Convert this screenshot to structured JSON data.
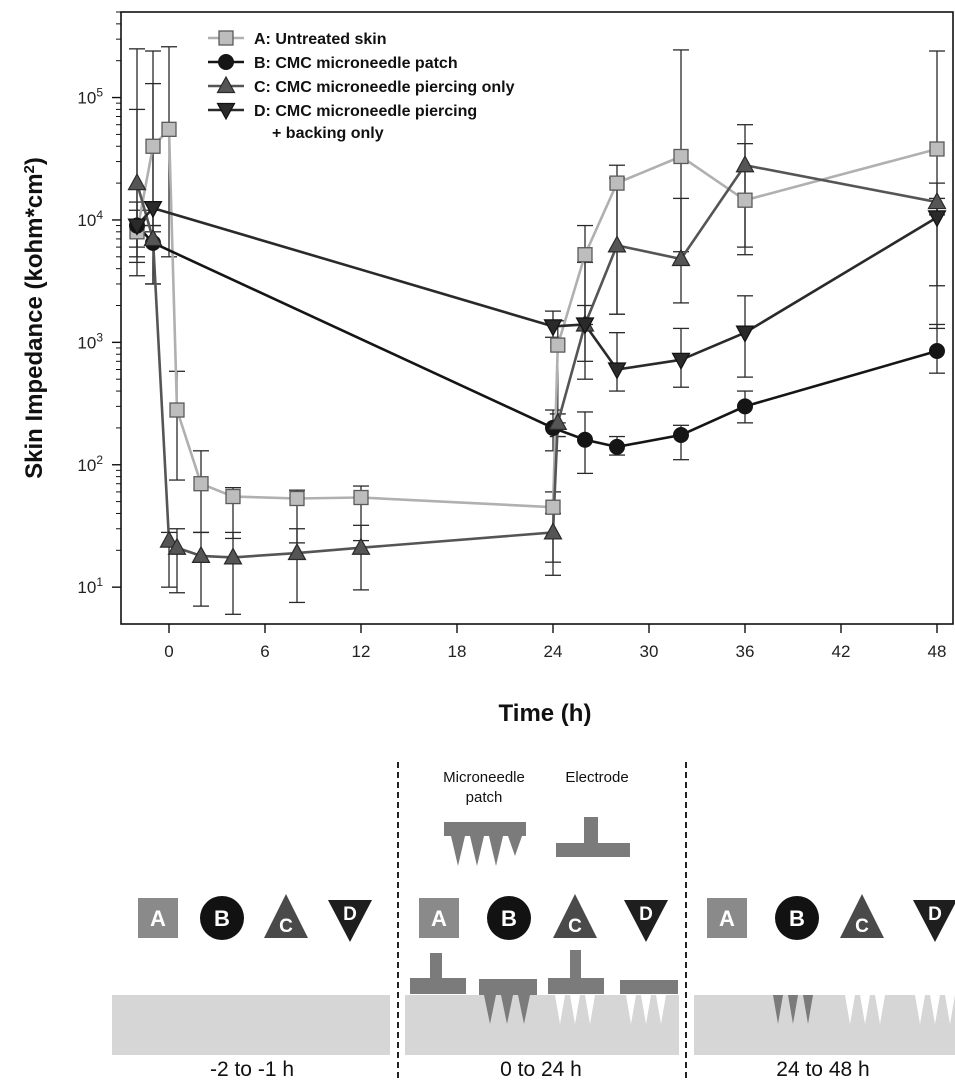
{
  "chart_data": {
    "type": "line",
    "ylabel": "Skin Impedance (kohm*cm²)",
    "xlabel": "Time (h)",
    "y_scale": "log",
    "ylim": [
      5,
      500000
    ],
    "xlim": [
      -3,
      49
    ],
    "x_ticks": [
      "0",
      "6",
      "12",
      "18",
      "24",
      "30",
      "36",
      "42",
      "48"
    ],
    "x_tick_values": [
      0,
      6,
      12,
      18,
      24,
      30,
      36,
      42,
      48
    ],
    "y_ticks": [
      {
        "base": "10",
        "exp": "1",
        "value": 10
      },
      {
        "base": "10",
        "exp": "2",
        "value": 100
      },
      {
        "base": "10",
        "exp": "3",
        "value": 1000
      },
      {
        "base": "10",
        "exp": "4",
        "value": 10000
      },
      {
        "base": "10",
        "exp": "5",
        "value": 100000
      }
    ],
    "grid": false,
    "legend_position": "top-left",
    "series": [
      {
        "name": "A: Untreated skin",
        "marker": "square",
        "color": "#bdbdbd",
        "edge": "#5a5a5a",
        "x": [
          -2,
          -1,
          0,
          0.5,
          2,
          4,
          8,
          12,
          24,
          24.3,
          26,
          28,
          32,
          36,
          48
        ],
        "y": [
          8000,
          40000,
          55000,
          280,
          70,
          55,
          53,
          54,
          45,
          950,
          5200,
          20000,
          33000,
          14500,
          38000
        ],
        "err_lo": [
          3500,
          9000,
          5000,
          75,
          28,
          25,
          23,
          24,
          16,
          220,
          1400,
          1700,
          5500,
          6000,
          11000
        ],
        "err_hi": [
          250000,
          240000,
          260000,
          580,
          130,
          65,
          62,
          67,
          60,
          1500,
          9000,
          28000,
          245000,
          42000,
          240000
        ]
      },
      {
        "name": "B: CMC microneedle patch",
        "marker": "circle",
        "color": "#151515",
        "edge": "#151515",
        "x": [
          -2,
          -1,
          24,
          26,
          28,
          32,
          36,
          48
        ],
        "y": [
          9000,
          6500,
          200,
          160,
          140,
          175,
          300,
          850
        ],
        "err_lo": [
          6000,
          3000,
          130,
          85,
          120,
          110,
          220,
          560
        ],
        "err_hi": [
          12000,
          9000,
          280,
          270,
          170,
          210,
          400,
          1400
        ]
      },
      {
        "name": "C: CMC microneedle piercing only",
        "marker": "triangle-up",
        "color": "#555555",
        "edge": "#2a2a2a",
        "x": [
          -2,
          -1,
          0,
          0.5,
          2,
          4,
          8,
          12,
          24,
          24.3,
          26,
          28,
          32,
          36,
          48
        ],
        "y": [
          20000,
          7000,
          24,
          21,
          18,
          17.5,
          19,
          21,
          28,
          220,
          1400,
          6200,
          4800,
          28000,
          14000
        ],
        "err_lo": [
          4500,
          3000,
          10,
          9,
          7,
          6,
          7.5,
          9.5,
          12.5,
          170,
          500,
          1700,
          2100,
          5200,
          2900
        ],
        "err_hi": [
          80000,
          12000,
          28,
          30,
          28,
          28,
          30,
          32,
          40,
          260,
          4500,
          22000,
          15000,
          60000,
          20000
        ]
      },
      {
        "name": "D: CMC microneedle piercing\n+ backing only",
        "marker": "triangle-down",
        "color": "#2a2a2a",
        "edge": "#111111",
        "x": [
          -2,
          -1,
          24,
          26,
          28,
          32,
          36,
          48
        ],
        "y": [
          9000,
          12500,
          1350,
          1400,
          600,
          720,
          1200,
          10500
        ],
        "err_lo": [
          5000,
          8000,
          1100,
          700,
          400,
          430,
          520,
          1300
        ],
        "err_hi": [
          14000,
          130000,
          1800,
          2000,
          1200,
          1300,
          2400,
          15000
        ]
      }
    ]
  },
  "diagram": {
    "stages": [
      {
        "label": "-2  to -1 h"
      },
      {
        "label": "0 to 24 h"
      },
      {
        "label": "24 to 48 h"
      }
    ],
    "top_labels": {
      "patch": [
        "Microneedle",
        "patch"
      ],
      "electrode": "Electrode"
    },
    "badges": [
      "A",
      "B",
      "C",
      "D"
    ],
    "colors": {
      "skin": "#d6d6d6",
      "device": "#7b7b7b",
      "badge_a": "#8a8a8a",
      "badge_b": "#121212",
      "badge_c": "#4a4a4a",
      "badge_d": "#1e1e1e"
    }
  }
}
